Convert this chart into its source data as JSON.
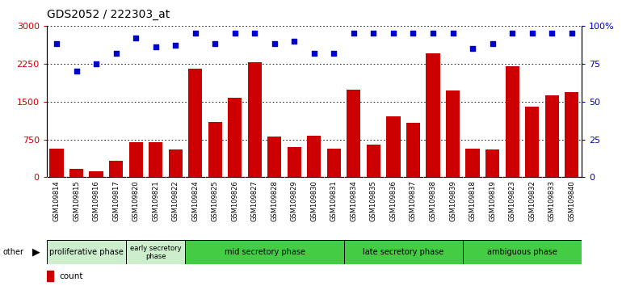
{
  "title": "GDS2052 / 222303_at",
  "samples": [
    "GSM109814",
    "GSM109815",
    "GSM109816",
    "GSM109817",
    "GSM109820",
    "GSM109821",
    "GSM109822",
    "GSM109824",
    "GSM109825",
    "GSM109826",
    "GSM109827",
    "GSM109828",
    "GSM109829",
    "GSM109830",
    "GSM109831",
    "GSM109834",
    "GSM109835",
    "GSM109836",
    "GSM109837",
    "GSM109838",
    "GSM109839",
    "GSM109818",
    "GSM109819",
    "GSM109823",
    "GSM109832",
    "GSM109833",
    "GSM109840"
  ],
  "counts": [
    560,
    165,
    120,
    320,
    700,
    700,
    550,
    2150,
    1100,
    1580,
    2280,
    800,
    600,
    820,
    560,
    1740,
    650,
    1200,
    1080,
    2450,
    1720,
    575,
    550,
    2200,
    1400,
    1620,
    1680
  ],
  "percentiles": [
    88,
    70,
    75,
    82,
    92,
    86,
    87,
    95,
    88,
    95,
    95,
    88,
    90,
    82,
    82,
    95,
    95,
    95,
    95,
    95,
    95,
    85,
    88,
    95,
    95,
    95,
    95
  ],
  "bar_color": "#cc0000",
  "dot_color": "#0000cc",
  "ylim_left": [
    0,
    3000
  ],
  "ylim_right": [
    0,
    100
  ],
  "yticks_left": [
    0,
    750,
    1500,
    2250,
    3000
  ],
  "ytick_labels_left": [
    "0",
    "750",
    "1500",
    "2250",
    "3000"
  ],
  "yticks_right": [
    0,
    25,
    50,
    75,
    100
  ],
  "ytick_labels_right": [
    "0",
    "25",
    "50",
    "75",
    "100%"
  ],
  "phase_definitions": [
    {
      "label": "proliferative phase",
      "start": 0,
      "end": 4,
      "color": "#cceecc"
    },
    {
      "label": "early secretory\nphase",
      "start": 4,
      "end": 7,
      "color": "#cceecc"
    },
    {
      "label": "mid secretory phase",
      "start": 7,
      "end": 15,
      "color": "#44cc44"
    },
    {
      "label": "late secretory phase",
      "start": 15,
      "end": 21,
      "color": "#44cc44"
    },
    {
      "label": "ambiguous phase",
      "start": 21,
      "end": 27,
      "color": "#44cc44"
    }
  ],
  "legend_count_color": "#cc0000",
  "legend_pct_color": "#0000cc",
  "plot_bg": "#ffffff",
  "xtick_bg": "#d8d8d8"
}
